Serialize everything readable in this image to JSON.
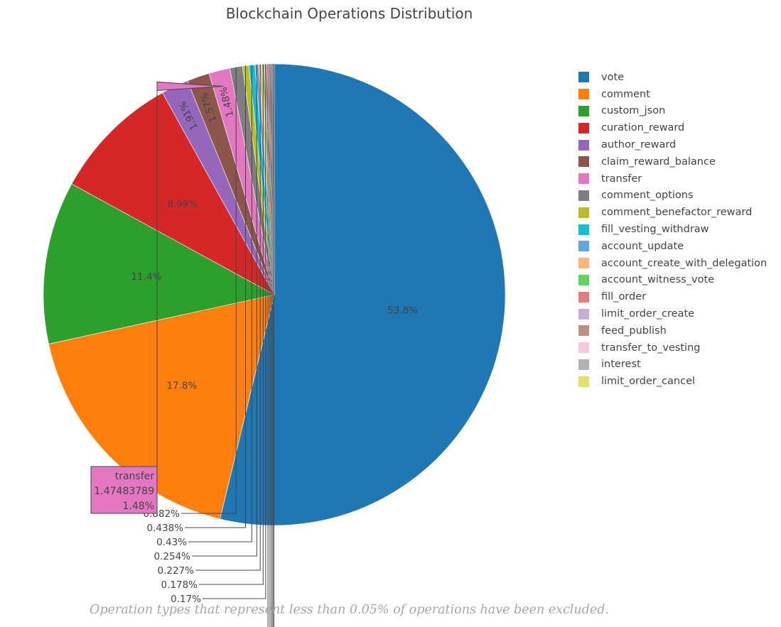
{
  "chart_data": {
    "type": "pie",
    "title": "Blockchain Operations Distribution",
    "legend_position": "right",
    "labels": [
      "vote",
      "comment",
      "custom_json",
      "curation_reward",
      "author_reward",
      "claim_reward_balance",
      "transfer",
      "comment_options",
      "comment_benefactor_reward",
      "fill_vesting_withdraw",
      "account_update",
      "account_create_with_delegation",
      "account_witness_vote",
      "fill_order",
      "limit_order_create",
      "feed_publish",
      "transfer_to_vesting",
      "interest",
      "limit_order_cancel"
    ],
    "colors": [
      "#1f77b4",
      "#ff7f0e",
      "#2ca02c",
      "#d62728",
      "#9467bd",
      "#8c564b",
      "#e377c2",
      "#7f7f7f",
      "#bcbd22",
      "#17becf",
      "#5fa8dc",
      "#ffb27a",
      "#5fd35f",
      "#e57c7c",
      "#c3aed9",
      "#be8f86",
      "#f4c6e0",
      "#b2b2b2",
      "#dfe367"
    ],
    "values": [
      53.8,
      17.8,
      11.4,
      8.99,
      1.91,
      1.57,
      1.48,
      0.882,
      0.438,
      0.43,
      0.254,
      0.227,
      0.178,
      0.17,
      0.15,
      0.12,
      0.1,
      0.08,
      0.06
    ],
    "text_labels": [
      "53.8%",
      "17.8%",
      "11.4%",
      "8.99%",
      "1.91%",
      "1.57%",
      "1.48%",
      "0.882%",
      "0.438%",
      "0.43%",
      "0.254%",
      "0.227%",
      "0.178%",
      "0.17%",
      "",
      "",
      "",
      "",
      ""
    ],
    "hover": {
      "label": "transfer",
      "value": "1.47483789",
      "percent": "1.48%"
    },
    "footnote": "Operation types that represent less than 0.05% of operations have been excluded."
  }
}
